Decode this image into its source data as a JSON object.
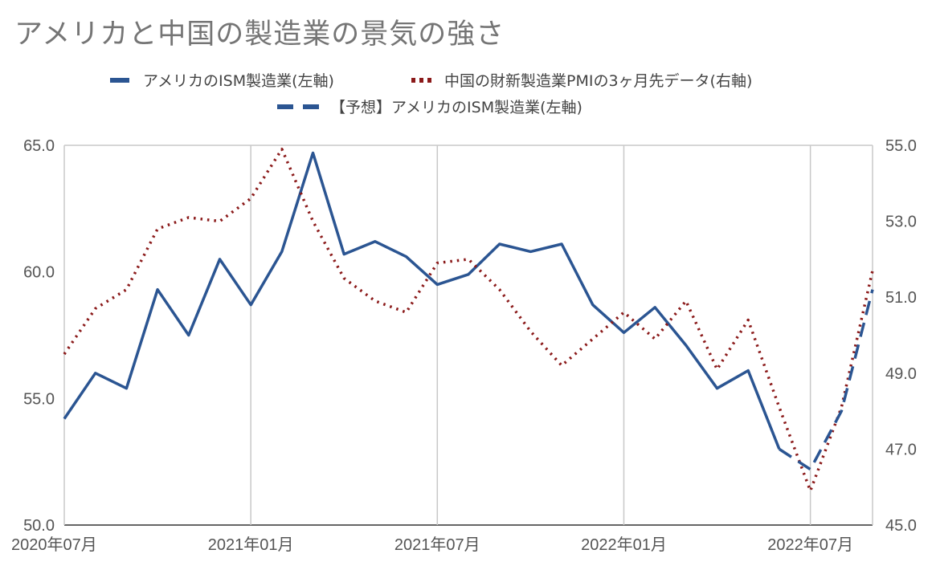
{
  "chart_data": {
    "type": "line",
    "title": "アメリカと中国の製造業の景気の強さ",
    "x_tick_labels": [
      "2020年07月",
      "2021年01月",
      "2021年07月",
      "2022年01月",
      "2022年07月"
    ],
    "y_left_ticks": [
      "50.0",
      "55.0",
      "60.0",
      "65.0"
    ],
    "y_right_ticks": [
      "45.0",
      "47.0",
      "49.0",
      "51.0",
      "53.0",
      "55.0"
    ],
    "y_left_range": [
      50,
      65
    ],
    "y_right_range": [
      45,
      55
    ],
    "x": [
      "2020-07",
      "2020-08",
      "2020-09",
      "2020-10",
      "2020-11",
      "2020-12",
      "2021-01",
      "2021-02",
      "2021-03",
      "2021-04",
      "2021-05",
      "2021-06",
      "2021-07",
      "2021-08",
      "2021-09",
      "2021-10",
      "2021-11",
      "2021-12",
      "2022-01",
      "2022-02",
      "2022-03",
      "2022-04",
      "2022-05",
      "2022-06",
      "2022-07",
      "2022-08",
      "2022-09"
    ],
    "grid": "vertical",
    "legend_position": "top",
    "series": [
      {
        "name": "アメリカのISM製造業(左軸)",
        "axis": "left",
        "style": "solid",
        "color": "#2b5592",
        "x": [
          "2020-07",
          "2020-08",
          "2020-09",
          "2020-10",
          "2020-11",
          "2020-12",
          "2021-01",
          "2021-02",
          "2021-03",
          "2021-04",
          "2021-05",
          "2021-06",
          "2021-07",
          "2021-08",
          "2021-09",
          "2021-10",
          "2021-11",
          "2021-12",
          "2022-01",
          "2022-02",
          "2022-03",
          "2022-04",
          "2022-05",
          "2022-06"
        ],
        "values": [
          54.2,
          56.0,
          55.4,
          59.3,
          57.5,
          60.5,
          58.7,
          60.8,
          64.7,
          60.7,
          61.2,
          60.6,
          59.5,
          59.9,
          61.1,
          60.8,
          61.1,
          58.7,
          57.6,
          58.6,
          57.1,
          55.4,
          56.1,
          53.0
        ]
      },
      {
        "name": "中国の財新製造業PMIの3ヶ月先データ(右軸)",
        "axis": "right",
        "style": "dotted",
        "color": "#8b1a1a",
        "x": [
          "2020-07",
          "2020-08",
          "2020-09",
          "2020-10",
          "2020-11",
          "2020-12",
          "2021-01",
          "2021-02",
          "2021-03",
          "2021-04",
          "2021-05",
          "2021-06",
          "2021-07",
          "2021-08",
          "2021-09",
          "2021-10",
          "2021-11",
          "2021-12",
          "2022-01",
          "2022-02",
          "2022-03",
          "2022-04",
          "2022-05",
          "2022-06",
          "2022-07",
          "2022-08",
          "2022-09"
        ],
        "values": [
          49.5,
          50.7,
          51.2,
          52.8,
          53.1,
          53.0,
          53.6,
          54.9,
          53.0,
          51.5,
          50.9,
          50.6,
          51.9,
          52.0,
          51.2,
          50.1,
          49.2,
          49.9,
          50.6,
          49.9,
          50.9,
          49.1,
          50.4,
          48.1,
          45.9,
          48.1,
          51.7
        ]
      },
      {
        "name": "【予想】アメリカのISM製造業(左軸)",
        "axis": "left",
        "style": "dashed",
        "color": "#2b5592",
        "x": [
          "2022-06",
          "2022-07",
          "2022-08",
          "2022-09"
        ],
        "values": [
          53.0,
          52.2,
          54.5,
          59.3
        ]
      }
    ]
  }
}
